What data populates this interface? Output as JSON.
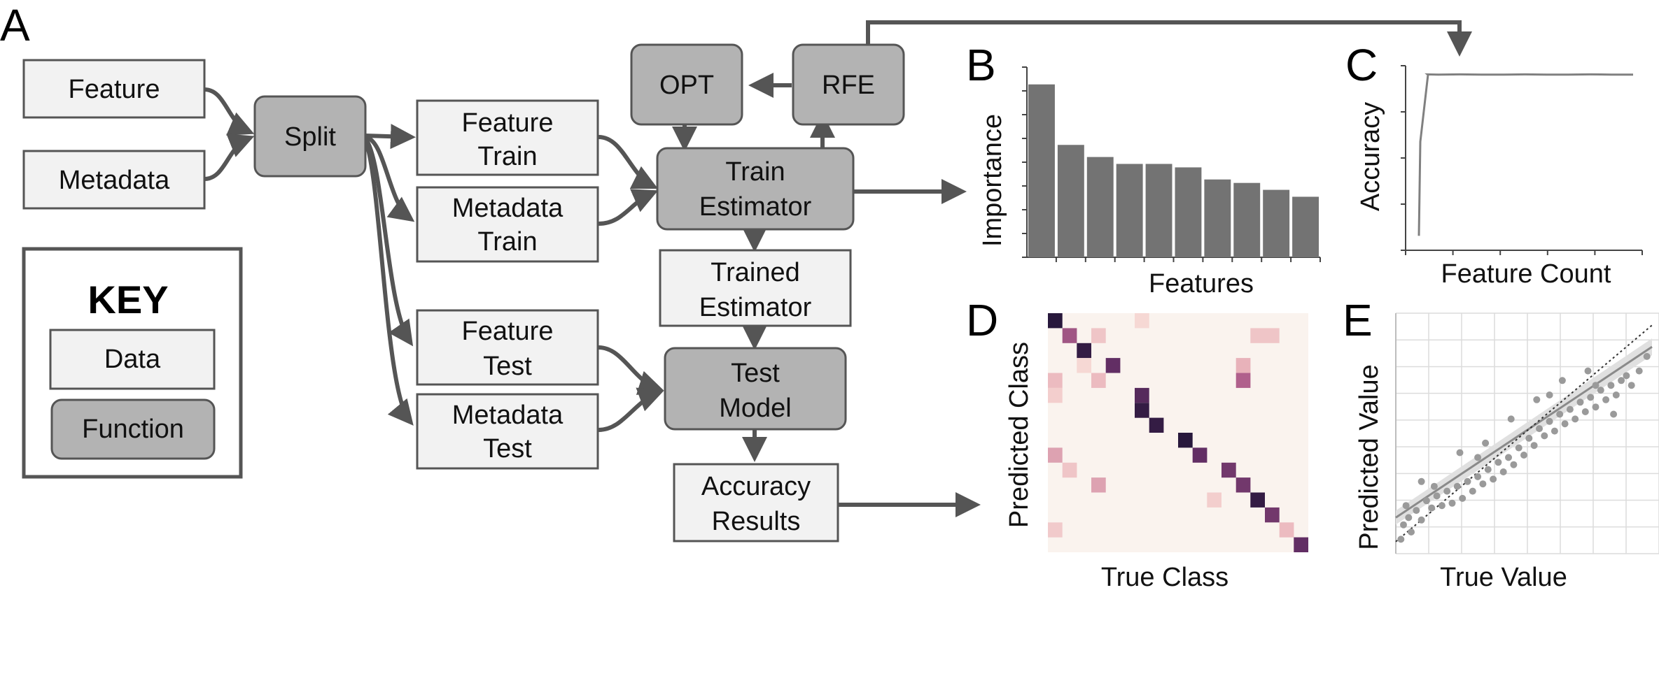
{
  "panels": {
    "a": "A",
    "b": "B",
    "c": "C",
    "d": "D",
    "e": "E"
  },
  "flow": {
    "feature": "Feature",
    "metadata": "Metadata",
    "split": "Split",
    "feature_train": [
      "Feature",
      "Train"
    ],
    "metadata_train": [
      "Metadata",
      "Train"
    ],
    "feature_test": [
      "Feature",
      "Test"
    ],
    "metadata_test": [
      "Metadata",
      "Test"
    ],
    "opt": "OPT",
    "rfe": "RFE",
    "train_estimator": [
      "Train",
      "Estimator"
    ],
    "trained_estimator": [
      "Trained",
      "Estimator"
    ],
    "test_model": [
      "Test",
      "Model"
    ],
    "accuracy_results": [
      "Accuracy",
      "Results"
    ]
  },
  "key": {
    "title": "KEY",
    "data": "Data",
    "function": "Function"
  },
  "colors": {
    "data_fill": "#f2f2f2",
    "function_fill": "#b3b3b3",
    "stroke": "#555555",
    "bar": "#737373",
    "line": "#808080",
    "scatter": "#9a9a9a",
    "heat_bg": "#faf3ee"
  },
  "chart_data": [
    {
      "type": "bar",
      "panel": "B",
      "xlabel": "Features",
      "ylabel": "Importance",
      "values": [
        100,
        65,
        58,
        54,
        54,
        52,
        45,
        43,
        39,
        35
      ],
      "ylim": [
        0,
        110
      ]
    },
    {
      "type": "line",
      "panel": "C",
      "xlabel": "Feature Count",
      "ylabel": "Accuracy",
      "x": [
        1,
        2,
        3,
        5,
        10,
        20,
        30,
        40,
        50,
        60,
        70,
        80,
        90,
        100
      ],
      "y": [
        0.08,
        0.6,
        0.97,
        0.972,
        0.971,
        0.972,
        0.971,
        0.971,
        0.972,
        0.971,
        0.971,
        0.972,
        0.971,
        0.971
      ],
      "ylim": [
        0,
        1.02
      ]
    },
    {
      "type": "heatmap",
      "panel": "D",
      "xlabel": "True Class",
      "ylabel": "Predicted Class",
      "cells": [
        [
          0,
          0,
          1.0
        ],
        [
          0,
          3,
          0.05
        ],
        [
          1,
          1,
          0.55
        ],
        [
          1,
          2,
          0.15
        ],
        [
          1,
          7,
          0.15
        ],
        [
          1,
          8,
          0.15
        ],
        [
          2,
          2,
          0.95
        ],
        [
          3,
          1,
          0.05
        ],
        [
          3,
          3,
          0.75
        ],
        [
          3,
          7,
          0.25
        ],
        [
          4,
          0,
          0.2
        ],
        [
          4,
          2,
          0.2
        ],
        [
          4,
          7,
          0.5
        ],
        [
          5,
          0,
          0.1
        ],
        [
          5,
          3,
          0.8
        ],
        [
          6,
          4,
          0.95
        ],
        [
          7,
          4,
          0.95
        ],
        [
          8,
          5,
          1.0
        ],
        [
          9,
          0,
          0.3
        ],
        [
          9,
          5,
          0.75
        ],
        [
          10,
          1,
          0.15
        ],
        [
          10,
          6,
          0.7
        ],
        [
          11,
          2,
          0.3
        ],
        [
          11,
          6,
          0.7
        ],
        [
          12,
          5,
          0.1
        ],
        [
          12,
          7,
          0.95
        ],
        [
          13,
          7,
          0.7
        ],
        [
          14,
          0,
          0.12
        ],
        [
          14,
          7,
          0.2
        ],
        [
          15,
          7,
          0.15
        ],
        [
          15,
          8,
          0.75
        ]
      ],
      "grid": [
        16,
        9
      ]
    },
    {
      "type": "scatter",
      "panel": "E",
      "xlabel": "True Value",
      "ylabel": "Predicted Value",
      "xlim": [
        0,
        10
      ],
      "ylim": [
        0,
        10
      ],
      "fit_line": [
        [
          0,
          1.5
        ],
        [
          10,
          8.6
        ]
      ],
      "identity_line": [
        [
          0,
          0.5
        ],
        [
          10,
          9.5
        ]
      ],
      "points": [
        [
          0.3,
          1.2
        ],
        [
          0.5,
          1.5
        ],
        [
          0.8,
          1.8
        ],
        [
          0.4,
          2.0
        ],
        [
          1.0,
          1.4
        ],
        [
          1.2,
          2.2
        ],
        [
          0.6,
          0.9
        ],
        [
          1.4,
          1.9
        ],
        [
          1.6,
          2.4
        ],
        [
          1.8,
          2.0
        ],
        [
          2.0,
          2.6
        ],
        [
          2.2,
          2.1
        ],
        [
          2.4,
          2.8
        ],
        [
          2.6,
          2.3
        ],
        [
          2.8,
          3.0
        ],
        [
          3.0,
          2.6
        ],
        [
          3.2,
          3.2
        ],
        [
          3.4,
          2.9
        ],
        [
          3.6,
          3.5
        ],
        [
          3.8,
          3.1
        ],
        [
          4.0,
          3.8
        ],
        [
          4.2,
          3.4
        ],
        [
          4.4,
          4.0
        ],
        [
          4.6,
          3.7
        ],
        [
          4.8,
          4.4
        ],
        [
          5.0,
          4.1
        ],
        [
          5.2,
          4.8
        ],
        [
          5.4,
          4.5
        ],
        [
          5.6,
          5.2
        ],
        [
          5.8,
          4.9
        ],
        [
          6.0,
          5.5
        ],
        [
          6.2,
          5.1
        ],
        [
          6.4,
          5.8
        ],
        [
          6.6,
          5.4
        ],
        [
          6.8,
          6.0
        ],
        [
          7.0,
          5.6
        ],
        [
          7.2,
          6.3
        ],
        [
          7.4,
          5.9
        ],
        [
          7.6,
          6.5
        ],
        [
          7.8,
          6.1
        ],
        [
          8.0,
          6.8
        ],
        [
          8.2,
          6.4
        ],
        [
          8.4,
          7.0
        ],
        [
          8.6,
          6.6
        ],
        [
          8.8,
          7.2
        ],
        [
          9.0,
          7.4
        ],
        [
          9.2,
          7.0
        ],
        [
          9.5,
          7.6
        ],
        [
          1.0,
          3.0
        ],
        [
          2.5,
          4.2
        ],
        [
          3.5,
          4.6
        ],
        [
          4.5,
          5.6
        ],
        [
          5.5,
          6.4
        ],
        [
          6.5,
          7.2
        ],
        [
          7.5,
          7.6
        ],
        [
          8.5,
          5.8
        ],
        [
          9.8,
          8.2
        ],
        [
          0.2,
          0.6
        ],
        [
          1.5,
          2.8
        ],
        [
          3.2,
          4.0
        ],
        [
          6.0,
          6.6
        ],
        [
          7.8,
          7.0
        ]
      ]
    }
  ]
}
